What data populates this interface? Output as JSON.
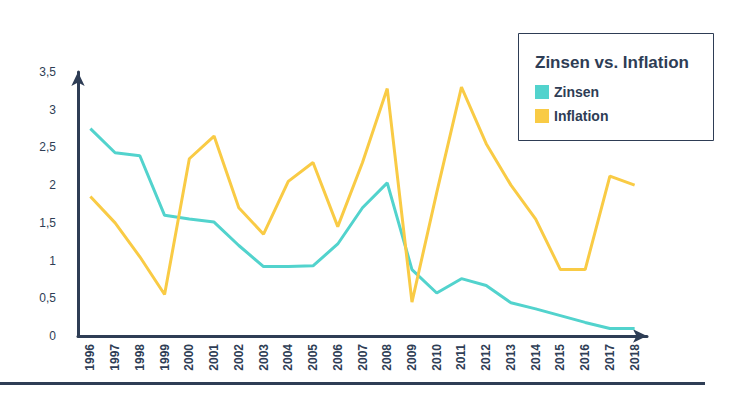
{
  "chart_data": {
    "type": "line",
    "title": "Zinsen vs. Inflation",
    "categories": [
      "1996",
      "1997",
      "1998",
      "1999",
      "2000",
      "2001",
      "2002",
      "2003",
      "2004",
      "2005",
      "2006",
      "2007",
      "2008",
      "2009",
      "2010",
      "2011",
      "2012",
      "2013",
      "2014",
      "2015",
      "2016",
      "2017",
      "2018"
    ],
    "series": [
      {
        "name": "Zinsen",
        "color": "#52d3cd",
        "values": [
          2.75,
          2.43,
          2.39,
          1.6,
          1.55,
          1.51,
          1.2,
          0.92,
          0.92,
          0.93,
          1.22,
          1.7,
          2.03,
          0.88,
          0.57,
          0.76,
          0.67,
          0.44,
          0.36,
          0.27,
          0.18,
          0.1,
          0.1
        ]
      },
      {
        "name": "Inflation",
        "color": "#f9cb45",
        "values": [
          1.85,
          1.5,
          1.05,
          0.55,
          2.35,
          2.65,
          1.7,
          1.35,
          2.05,
          2.3,
          1.45,
          2.3,
          3.28,
          0.45,
          1.9,
          3.3,
          2.55,
          2.0,
          1.55,
          0.88,
          0.88,
          2.12,
          2.0
        ]
      }
    ],
    "ylim": [
      0,
      3.5
    ],
    "yticks": [
      0,
      {
        "value": 0.5,
        "label": "0,5"
      },
      1,
      {
        "value": 1.5,
        "label": "1,5"
      },
      2,
      {
        "value": 2.5,
        "label": "2,5"
      },
      3,
      {
        "value": 3.5,
        "label": "3,5"
      }
    ],
    "grid": false,
    "legend": "upper right"
  }
}
